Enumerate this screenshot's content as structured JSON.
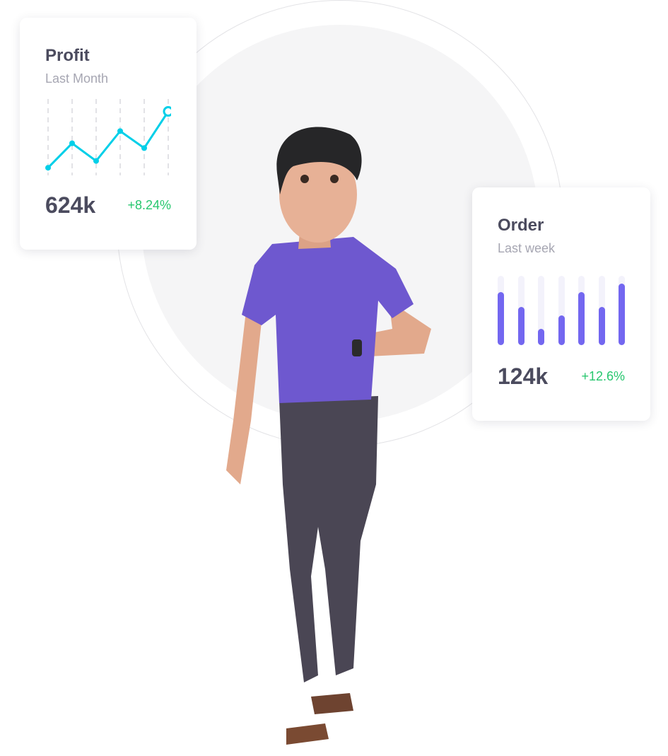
{
  "profit_card": {
    "title": "Profit",
    "subtitle": "Last Month",
    "value": "624k",
    "change": "+8.24%"
  },
  "order_card": {
    "title": "Order",
    "subtitle": "Last week",
    "value": "124k",
    "change": "+12.6%"
  },
  "colors": {
    "line": "#00cfe8",
    "bar": "#7367f0",
    "positive": "#28c76f",
    "text": "#4b4b5e"
  },
  "chart_data": [
    {
      "type": "line",
      "values": [
        5,
        41,
        15,
        59,
        34,
        88
      ],
      "ylim": [
        0,
        100
      ],
      "grid": "vertical dashed",
      "highlight_last_point": true
    },
    {
      "type": "bar",
      "values": [
        0.77,
        0.55,
        0.23,
        0.43,
        0.77,
        0.55,
        0.89
      ],
      "ylim": [
        0,
        1
      ]
    }
  ]
}
